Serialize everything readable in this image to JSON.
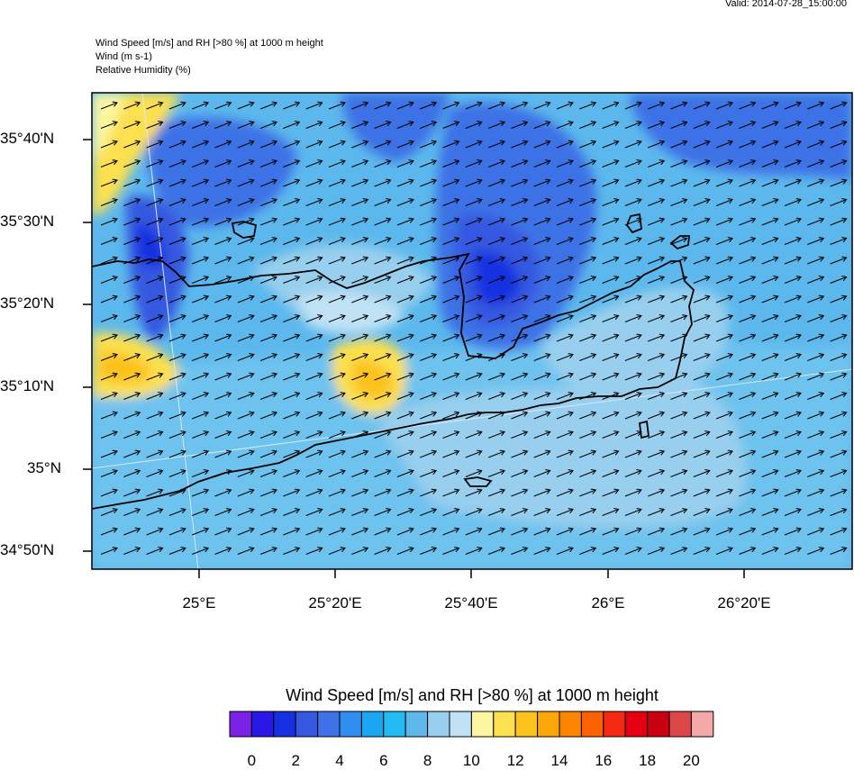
{
  "valid_time": "Valid: 2014-07-28_15:00:00",
  "header": {
    "line1": "Wind Speed [m/s] and RH [>80 %] at 1000 m height",
    "line2": "Wind   (m s-1)",
    "line3": "Relative Humidity   (%)"
  },
  "lat_labels": [
    "35°40'N",
    "35°30'N",
    "35°20'N",
    "35°10'N",
    "35°N",
    "34°50'N"
  ],
  "lon_labels": [
    "25°E",
    "25°20'E",
    "25°40'E",
    "26°E",
    "26°20'E"
  ],
  "colorbar": {
    "title": "Wind Speed [m/s] and RH [>80 %] at 1000 m height",
    "colors": [
      "#7a22e6",
      "#2a18e6",
      "#1530e0",
      "#3458e0",
      "#3c72e6",
      "#2f8ef0",
      "#1aa6f2",
      "#22bcf2",
      "#60b8ea",
      "#98cfee",
      "#c0e2f4",
      "#fcf6a0",
      "#fce050",
      "#fcc21c",
      "#fca608",
      "#fc8600",
      "#fc6000",
      "#f42a10",
      "#e40010",
      "#c80010",
      "#dc4848",
      "#f4a8a8"
    ],
    "labels": [
      "0",
      "2",
      "4",
      "6",
      "8",
      "10",
      "12",
      "14",
      "16",
      "18",
      "20"
    ]
  },
  "colors": {
    "base_field": "#5cb8ec",
    "coastline": "#000000",
    "arrows": "#000000",
    "gridline": "#d8e8f8"
  },
  "map_features": [
    "Crete (eastern)",
    "wind vectors",
    "wind-speed shading"
  ]
}
